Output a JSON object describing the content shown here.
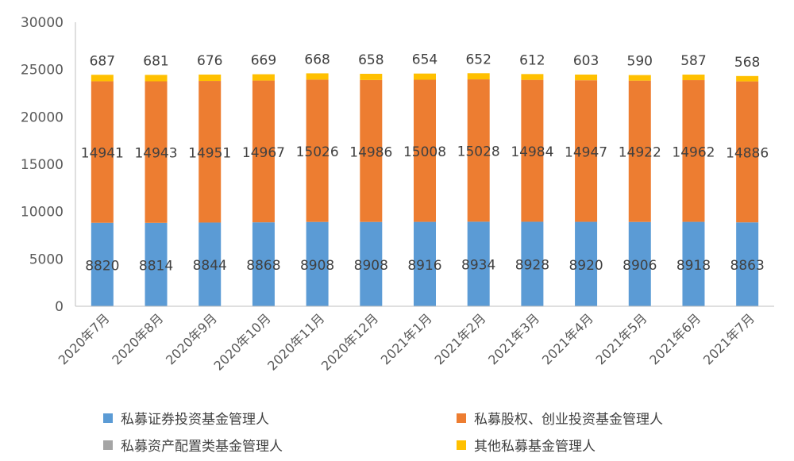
{
  "chart_data": {
    "type": "bar",
    "stacked": true,
    "categories": [
      "2020年7月",
      "2020年8月",
      "2020年9月",
      "2020年10月",
      "2020年11月",
      "2020年12月",
      "2021年1月",
      "2021年2月",
      "2021年3月",
      "2021年4月",
      "2021年5月",
      "2021年6月",
      "2021年7月"
    ],
    "series": [
      {
        "name": "私募证券投资基金管理人",
        "color": "#5B9BD5",
        "values": [
          8820,
          8814,
          8844,
          8868,
          8908,
          8908,
          8916,
          8934,
          8928,
          8920,
          8906,
          8918,
          8863
        ]
      },
      {
        "name": "私募股权、创业投资基金管理人",
        "color": "#ED7D31",
        "values": [
          14941,
          14943,
          14951,
          14967,
          15026,
          14986,
          15008,
          15028,
          14984,
          14947,
          14922,
          14962,
          14886
        ]
      },
      {
        "name": "私募资产配置类基金管理人",
        "color": "#A5A5A5",
        "values": [
          0,
          0,
          0,
          0,
          0,
          0,
          0,
          0,
          0,
          0,
          0,
          0,
          0
        ]
      },
      {
        "name": "其他私募基金管理人",
        "color": "#FFC000",
        "values": [
          687,
          681,
          676,
          669,
          668,
          658,
          654,
          652,
          612,
          603,
          590,
          587,
          568
        ]
      }
    ],
    "ylim": [
      0,
      30000
    ],
    "yticks": [
      0,
      5000,
      10000,
      15000,
      20000,
      25000,
      30000
    ],
    "title": "",
    "xlabel": "",
    "ylabel": "",
    "legend_position": "bottom"
  }
}
